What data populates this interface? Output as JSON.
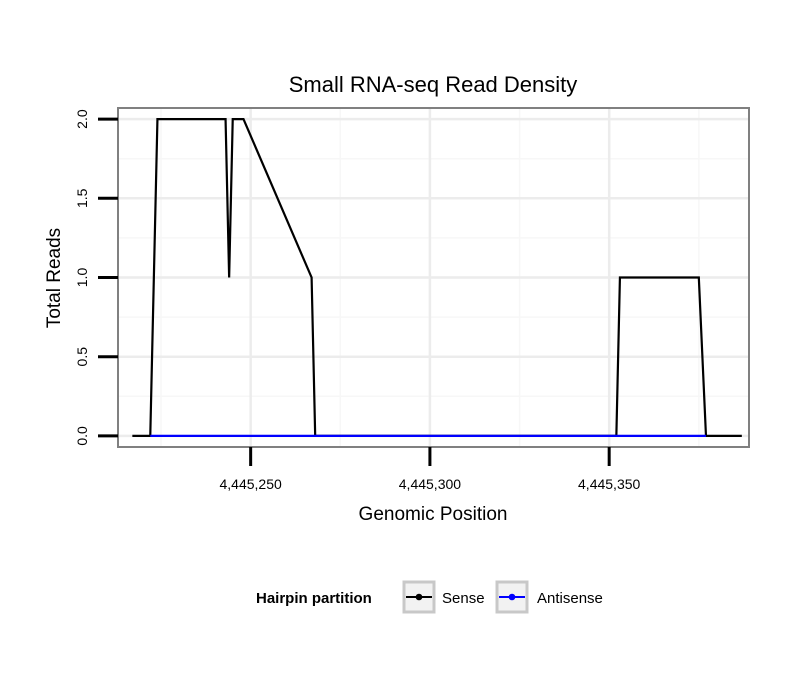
{
  "chart_data": {
    "type": "line",
    "title": "Small RNA-seq Read Density",
    "xlabel": "Genomic Position",
    "ylabel": "Total Reads",
    "xlim": [
      4445213,
      4445389
    ],
    "ylim": [
      -0.07,
      2.07
    ],
    "x_ticks": [
      4445250,
      4445300,
      4445350
    ],
    "x_tick_labels": [
      "4,445,250",
      "4,445,300",
      "4,445,350"
    ],
    "y_ticks": [
      0,
      0.5,
      1,
      1.5,
      2
    ],
    "y_tick_labels": [
      "0.0",
      "0.5",
      "1.0",
      "1.5",
      "2.0"
    ],
    "grid": true,
    "legend": {
      "title": "Hairpin partition",
      "placement": "bottom"
    },
    "series": [
      {
        "name": "Sense",
        "color": "#000000",
        "x": [
          4445217,
          4445222,
          4445224,
          4445243,
          4445244,
          4445245,
          4445248,
          4445267,
          4445268,
          4445352,
          4445353,
          4445375,
          4445377,
          4445387
        ],
        "values": [
          0,
          0,
          2,
          2,
          1,
          2,
          2,
          1,
          0,
          0,
          1,
          1,
          0,
          0
        ]
      },
      {
        "name": "Antisense",
        "color": "#0000ff",
        "x": [
          4445222,
          4445268,
          4445352,
          4445377
        ],
        "values": [
          0,
          0,
          0,
          0
        ]
      }
    ]
  }
}
